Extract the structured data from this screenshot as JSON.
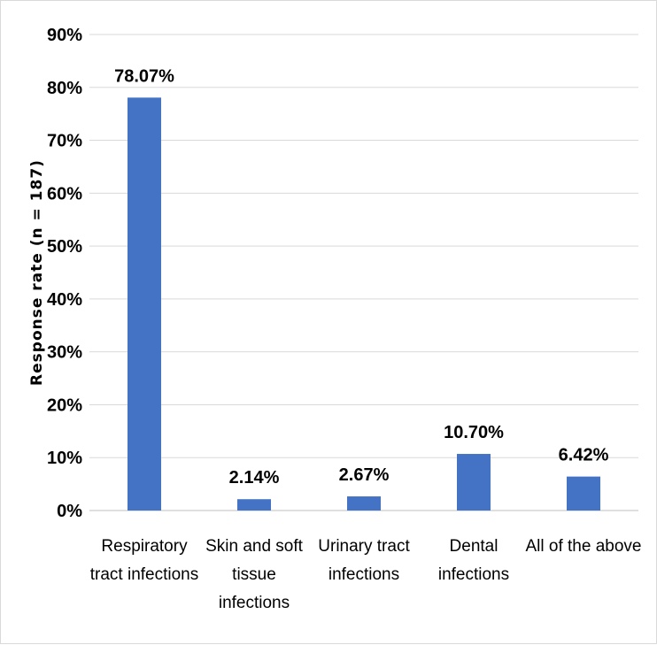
{
  "chart_data": {
    "type": "bar",
    "title": "",
    "xlabel": "",
    "ylabel": "Response rate (n = 187)",
    "ylim": [
      0,
      90
    ],
    "y_ticks": [
      "0%",
      "10%",
      "20%",
      "30%",
      "40%",
      "50%",
      "60%",
      "70%",
      "80%",
      "90%"
    ],
    "grid": true,
    "bar_color": "#4472c4",
    "categories": [
      [
        "Respiratory",
        "tract infections"
      ],
      [
        "Skin and soft",
        "tissue",
        "infections"
      ],
      [
        "Urinary tract",
        "infections"
      ],
      [
        "Dental",
        "infections"
      ],
      [
        "All of the above"
      ]
    ],
    "values": [
      78.07,
      2.14,
      2.67,
      10.7,
      6.42
    ],
    "data_labels": [
      "78.07%",
      "2.14%",
      "2.67%",
      "10.70%",
      "6.42%"
    ]
  }
}
